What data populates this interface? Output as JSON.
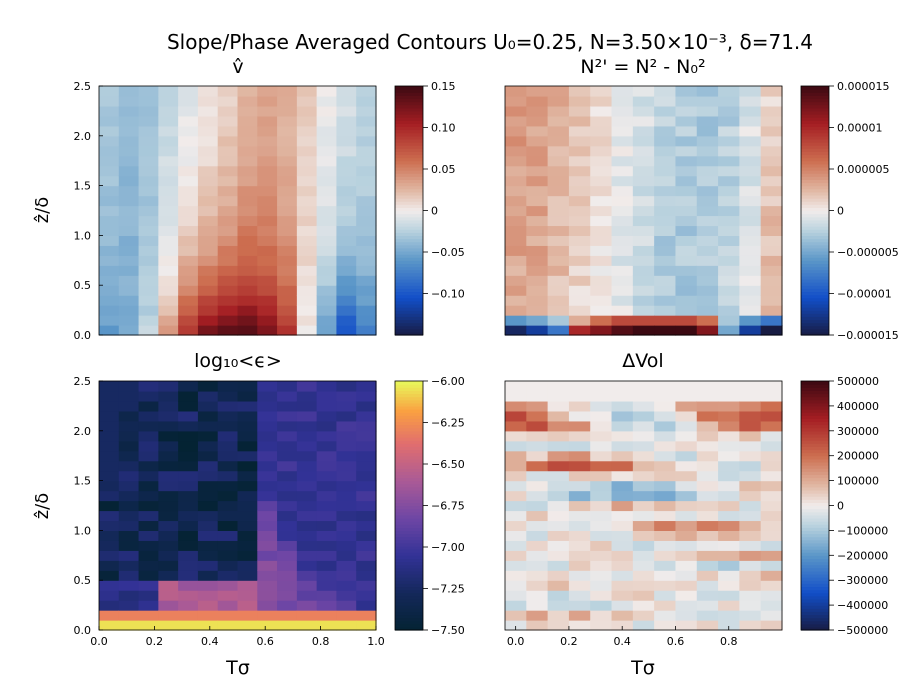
{
  "figure": {
    "title": "Slope/Phase Averaged Contours U₀=0.25, N=3.50×10⁻³, δ=71.4"
  },
  "chart_data": [
    {
      "type": "heatmap",
      "title": "v̂",
      "ylabel": "ẑ/δ",
      "xlabel": "",
      "xlim": [
        0,
        1.0
      ],
      "ylim": [
        0,
        2.5
      ],
      "xticks": [],
      "xticklabels": [],
      "yticks": [
        0,
        0.5,
        1.0,
        1.5,
        2.0,
        2.5
      ],
      "yticklabels": [
        "0.0",
        "0.5",
        "1.0",
        "1.5",
        "2.0",
        "2.5"
      ],
      "colormap": "balance",
      "clim": [
        -0.15,
        0.15
      ],
      "colorbar_ticks": [
        -0.1,
        -0.05,
        0,
        0.05,
        0.1,
        0.15
      ],
      "colorbar_ticklabels": [
        "−0.10",
        "−0.05",
        "0",
        "0.05",
        "0.10",
        "0.15"
      ],
      "ncols": 14,
      "nrows": 25,
      "profile_top": [
        -0.03,
        -0.04,
        -0.035,
        -0.02,
        -0.01,
        0.0,
        0.01,
        0.025,
        0.03,
        0.025,
        0.015,
        0.0,
        -0.01,
        -0.02
      ],
      "profile_bottom": [
        -0.06,
        -0.05,
        -0.02,
        0.04,
        0.1,
        0.13,
        0.15,
        0.15,
        0.13,
        0.1,
        0.0,
        -0.06,
        -0.11,
        -0.08
      ]
    },
    {
      "type": "heatmap",
      "title": "N²' = N² - N₀²",
      "ylabel": "",
      "xlabel": "",
      "xlim": [
        -0.04,
        1.0
      ],
      "ylim": [
        0,
        2.5
      ],
      "xticks": [],
      "xticklabels": [],
      "yticks": [],
      "yticklabels": [],
      "colormap": "balance",
      "clim": [
        -1.5e-05,
        1.5e-05
      ],
      "colorbar_ticks": [
        -1.5e-05,
        -1e-05,
        -5e-06,
        0,
        5e-06,
        1e-05,
        1.5e-05
      ],
      "colorbar_ticklabels": [
        "−0.000015",
        "−0.00001",
        "−0.000005",
        "0",
        "0.000005",
        "0.00001",
        "0.000015"
      ],
      "ncols": 13,
      "nrows": 25,
      "profile_top": [
        4e-06,
        3.5e-06,
        3e-06,
        2e-06,
        1e-06,
        0,
        -1e-06,
        -2e-06,
        -2.5e-06,
        -3e-06,
        -2.5e-06,
        -1e-06,
        1e-06
      ],
      "profile_mid": [
        3e-06,
        3e-06,
        2e-06,
        1e-06,
        0,
        -1e-06,
        -2e-06,
        -3e-06,
        -3e-06,
        -2.5e-06,
        -2e-06,
        -1e-06,
        3e-06
      ],
      "bottom_rows": [
        [
          -1.4e-05,
          -1.2e-05,
          -8e-06,
          1e-05,
          1.2e-05,
          1.4e-05,
          1.5e-05,
          1.5e-05,
          1.5e-05,
          1.2e-05,
          -5e-06,
          -1.2e-05,
          -1.5e-05
        ],
        [
          -6e-06,
          -5e-06,
          -3e-06,
          3e-06,
          6e-06,
          8e-06,
          8e-06,
          8e-06,
          8e-06,
          6e-06,
          -3e-06,
          -6e-06,
          -8e-06
        ]
      ]
    },
    {
      "type": "heatmap",
      "title": "log₁₀<ϵ>",
      "ylabel": "ẑ/δ",
      "xlabel": "Tσ",
      "xlim": [
        0,
        1.0
      ],
      "ylim": [
        0,
        2.5
      ],
      "xticks": [
        0,
        0.2,
        0.4,
        0.6,
        0.8,
        1.0
      ],
      "xticklabels": [
        "0.0",
        "0.2",
        "0.4",
        "0.6",
        "0.8",
        "1.0"
      ],
      "yticks": [
        0,
        0.5,
        1.0,
        1.5,
        2.0,
        2.5
      ],
      "yticklabels": [
        "0.0",
        "0.5",
        "1.0",
        "1.5",
        "2.0",
        "2.5"
      ],
      "colormap": "thermal",
      "clim": [
        -7.5,
        -6.0
      ],
      "colorbar_ticks": [
        -7.5,
        -7.25,
        -7.0,
        -6.75,
        -6.5,
        -6.25,
        -6.0
      ],
      "colorbar_ticklabels": [
        "−7.50",
        "−7.25",
        "−7.00",
        "−6.75",
        "−6.50",
        "−6.25",
        "−6.00"
      ],
      "ncols": 14,
      "nrows": 25,
      "dark_boundary_z": [
        1.5,
        2.2,
        2.6,
        2.6,
        2.6,
        2.6,
        2.6,
        2.6,
        1.3,
        0.9,
        0.6,
        0.4,
        0.3,
        0.2
      ]
    },
    {
      "type": "heatmap",
      "title": "ΔVol",
      "ylabel": "",
      "xlabel": "Tσ",
      "xlim": [
        -0.04,
        1.0
      ],
      "ylim": [
        0,
        2.5
      ],
      "xticks": [
        0,
        0.2,
        0.4,
        0.6,
        0.8
      ],
      "xticklabels": [
        "0.0",
        "0.2",
        "0.4",
        "0.6",
        "0.8"
      ],
      "yticks": [],
      "yticklabels": [],
      "colormap": "balance",
      "clim": [
        -500000,
        500000
      ],
      "colorbar_ticks": [
        -500000,
        -400000,
        -300000,
        -200000,
        -100000,
        0,
        100000,
        200000,
        300000,
        400000,
        500000
      ],
      "colorbar_ticklabels": [
        "−500000",
        "−400000",
        "−300000",
        "−200000",
        "−100000",
        "0",
        "100000",
        "200000",
        "300000",
        "400000",
        "500000"
      ],
      "ncols": 13,
      "nrows": 25,
      "row_profile": [
        0,
        80000,
        -50000,
        -60000,
        40000,
        60000,
        -80000,
        100000,
        -40000,
        50000,
        150000,
        -30000,
        80000,
        -150000,
        -100000,
        20000,
        250000,
        100000,
        -40000,
        40000,
        250000,
        300000,
        200000,
        50000,
        30000,
        0
      ]
    }
  ]
}
